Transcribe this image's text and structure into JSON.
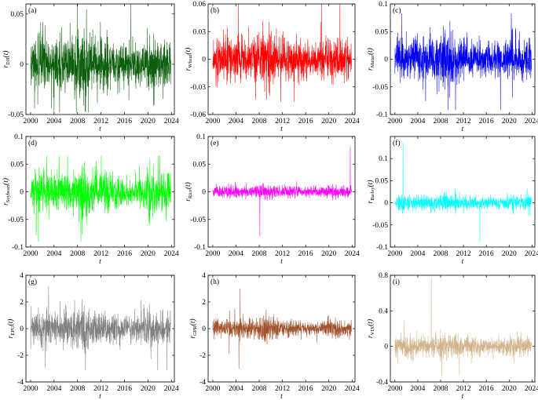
{
  "chart_data": [
    {
      "type": "line",
      "panel_label": "(a)",
      "ylabel": "r_DJI(t)",
      "ylabel_main": "r",
      "ylabel_sub": "DJI",
      "ylabel_arg": "(t)",
      "xlabel": "t",
      "xlim": [
        1999.2,
        2024.5
      ],
      "ylim": [
        -0.05,
        0.06
      ],
      "xticks": [
        2000,
        2004,
        2008,
        2012,
        2016,
        2020,
        2024
      ],
      "xtick_labels": [
        "2000",
        "2004",
        "2008",
        "2012",
        "2016",
        "2020",
        "2024"
      ],
      "yticks": [
        -0.05,
        0,
        0.05
      ],
      "ytick_labels": [
        "-0.05",
        "0",
        "0.05"
      ],
      "color": "#0b5e0b",
      "data_start": 2000.0,
      "data_end": 2023.9,
      "typical_amplitude": 0.013,
      "min": -0.048,
      "max": 0.062
    },
    {
      "type": "line",
      "panel_label": "(b)",
      "ylabel": "r_Wheat(t)",
      "ylabel_main": "r",
      "ylabel_sub": "Wheat",
      "ylabel_arg": "(t)",
      "xlabel": "t",
      "xlim": [
        1999.2,
        2024.5
      ],
      "ylim": [
        -0.06,
        0.06
      ],
      "xticks": [
        2000,
        2004,
        2008,
        2012,
        2016,
        2020,
        2024
      ],
      "xtick_labels": [
        "2000",
        "2004",
        "2008",
        "2012",
        "2016",
        "2020",
        "2024"
      ],
      "yticks": [
        -0.06,
        -0.03,
        0,
        0.03,
        0.06
      ],
      "ytick_labels": [
        "-0.06",
        "-0.03",
        "0",
        "0.03",
        "0.06"
      ],
      "color": "#ff0000",
      "data_start": 2000.0,
      "data_end": 2023.9,
      "typical_amplitude": 0.011,
      "min": -0.046,
      "max": 0.06
    },
    {
      "type": "line",
      "panel_label": "(c)",
      "ylabel": "r_Maize(t)",
      "ylabel_main": "r",
      "ylabel_sub": "Maize",
      "ylabel_arg": "(t)",
      "xlabel": "t",
      "xlim": [
        1999.2,
        2024.5
      ],
      "ylim": [
        -0.1,
        0.1
      ],
      "xticks": [
        2000,
        2004,
        2008,
        2012,
        2016,
        2020,
        2024
      ],
      "xtick_labels": [
        "2000",
        "2004",
        "2008",
        "2012",
        "2016",
        "2020",
        "2024"
      ],
      "yticks": [
        -0.1,
        -0.05,
        0,
        0.05,
        0.1
      ],
      "ytick_labels": [
        "-0.1",
        "-0.05",
        "0",
        "0.05",
        "0.1"
      ],
      "color": "#0000ee",
      "data_start": 2000.0,
      "data_end": 2023.9,
      "typical_amplitude": 0.018,
      "min": -0.092,
      "max": 0.083
    },
    {
      "type": "line",
      "panel_label": "(d)",
      "ylabel": "r_Soybean(t)",
      "ylabel_main": "r",
      "ylabel_sub": "Soybean",
      "ylabel_arg": "(t)",
      "xlabel": "t",
      "xlim": [
        1999.2,
        2024.5
      ],
      "ylim": [
        -0.1,
        0.1
      ],
      "xticks": [
        2000,
        2004,
        2008,
        2012,
        2016,
        2020,
        2024
      ],
      "xtick_labels": [
        "2000",
        "2004",
        "2008",
        "2012",
        "2016",
        "2020",
        "2024"
      ],
      "yticks": [
        -0.1,
        -0.05,
        0,
        0.05,
        0.1
      ],
      "ytick_labels": [
        "-0.1",
        "-0.05",
        "0",
        "0.05",
        "0.1"
      ],
      "color": "#00ff00",
      "data_start": 2000.0,
      "data_end": 2023.9,
      "typical_amplitude": 0.017,
      "min": -0.09,
      "max": 0.065
    },
    {
      "type": "line",
      "panel_label": "(e)",
      "ylabel": "r_Rice(t)",
      "ylabel_main": "r",
      "ylabel_sub": "Rice",
      "ylabel_arg": "(t)",
      "xlabel": "t",
      "xlim": [
        1999.2,
        2024.5
      ],
      "ylim": [
        -0.1,
        0.1
      ],
      "xticks": [
        2000,
        2004,
        2008,
        2012,
        2016,
        2020,
        2024
      ],
      "xtick_labels": [
        "2000",
        "2004",
        "2008",
        "2012",
        "2016",
        "2020",
        "2024"
      ],
      "yticks": [
        -0.1,
        -0.05,
        0,
        0.05,
        0.1
      ],
      "ytick_labels": [
        "-0.1",
        "-0.05",
        "0",
        "0.05",
        "0.1"
      ],
      "color": "#ff00ff",
      "data_start": 2000.0,
      "data_end": 2023.9,
      "typical_amplitude": 0.005,
      "min": -0.08,
      "max": 0.082
    },
    {
      "type": "line",
      "panel_label": "(f)",
      "ylabel": "r_Barley(t)",
      "ylabel_main": "r",
      "ylabel_sub": "Barley",
      "ylabel_arg": "(t)",
      "xlabel": "t",
      "xlim": [
        1999.2,
        2024.5
      ],
      "ylim": [
        -0.1,
        0.15
      ],
      "xticks": [
        2000,
        2004,
        2008,
        2012,
        2016,
        2020,
        2024
      ],
      "xtick_labels": [
        "2000",
        "2004",
        "2008",
        "2012",
        "2016",
        "2020",
        "2024"
      ],
      "yticks": [
        -0.1,
        -0.05,
        0,
        0.05,
        0.1
      ],
      "ytick_labels": [
        "-0.1",
        "-0.05",
        "0",
        "0.05",
        "0.1"
      ],
      "color": "#00ffff",
      "data_start": 2000.0,
      "data_end": 2023.9,
      "typical_amplitude": 0.008,
      "min": -0.09,
      "max": 0.135
    },
    {
      "type": "line",
      "panel_label": "(g)",
      "ylabel": "r_EPU(t)",
      "ylabel_main": "r",
      "ylabel_sub": "EPU",
      "ylabel_arg": "(t)",
      "xlabel": "t",
      "xlim": [
        1999.2,
        2024.5
      ],
      "ylim": [
        -4,
        4
      ],
      "xticks": [
        2000,
        2004,
        2008,
        2012,
        2016,
        2020,
        2024
      ],
      "xtick_labels": [
        "2000",
        "2004",
        "2008",
        "2012",
        "2016",
        "2020",
        "2024"
      ],
      "yticks": [
        -4,
        -2,
        0,
        2,
        4
      ],
      "ytick_labels": [
        "-4",
        "-2",
        "0",
        "2",
        "4"
      ],
      "color": "#808080",
      "data_start": 2000.0,
      "data_end": 2023.9,
      "typical_amplitude": 0.6,
      "min": -3.1,
      "max": 3.2
    },
    {
      "type": "line",
      "panel_label": "(h)",
      "ylabel": "r_GPR(t)",
      "ylabel_main": "r",
      "ylabel_sub": "GPR",
      "ylabel_arg": "(t)",
      "xlabel": "t",
      "xlim": [
        1999.2,
        2024.5
      ],
      "ylim": [
        -4,
        4
      ],
      "xticks": [
        2000,
        2004,
        2008,
        2012,
        2016,
        2020,
        2024
      ],
      "xtick_labels": [
        "2000",
        "2004",
        "2008",
        "2012",
        "2016",
        "2020",
        "2024"
      ],
      "yticks": [
        -4,
        -2,
        0,
        2,
        4
      ],
      "ytick_labels": [
        "-4",
        "-2",
        "0",
        "2",
        "4"
      ],
      "color": "#a0522d",
      "data_start": 2000.0,
      "data_end": 2023.9,
      "typical_amplitude": 0.33,
      "min": -3.0,
      "max": 3.0
    },
    {
      "type": "line",
      "panel_label": "(i)",
      "ylabel": "r_VIX(t)",
      "ylabel_main": "r",
      "ylabel_sub": "VIX",
      "ylabel_arg": "(t)",
      "xlabel": "t",
      "xlim": [
        1999.2,
        2024.5
      ],
      "ylim": [
        -0.4,
        0.8
      ],
      "xticks": [
        2000,
        2004,
        2008,
        2012,
        2016,
        2020,
        2024
      ],
      "xtick_labels": [
        "2000",
        "2004",
        "2008",
        "2012",
        "2016",
        "2020",
        "2024"
      ],
      "yticks": [
        -0.4,
        0,
        0.4,
        0.8
      ],
      "ytick_labels": [
        "-0.4",
        "0",
        "0.4",
        "0.8"
      ],
      "color": "#d2b48c",
      "data_start": 2000.0,
      "data_end": 2023.9,
      "typical_amplitude": 0.055,
      "min": -0.33,
      "max": 0.77
    }
  ]
}
